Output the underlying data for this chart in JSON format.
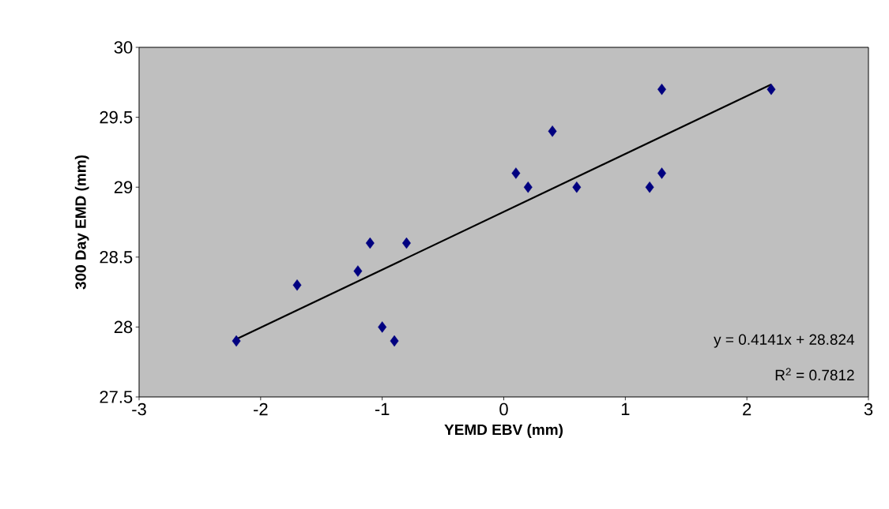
{
  "chart_data": {
    "type": "scatter",
    "xlabel": "YEMD EBV (mm)",
    "ylabel": "300 Day EMD (mm)",
    "xlim": [
      -3,
      3
    ],
    "xticks": [
      -3,
      -2,
      -1,
      0,
      1,
      2,
      3
    ],
    "ylim": [
      27.5,
      30
    ],
    "yticks": [
      27.5,
      28,
      28.5,
      29,
      29.5,
      30
    ],
    "grid": false,
    "series": [
      {
        "color": "#000080",
        "marker": "diamond",
        "x": [
          -2.2,
          -1.7,
          -1.2,
          -1.1,
          -1.0,
          -0.9,
          -0.8,
          0.1,
          0.2,
          0.4,
          0.6,
          1.2,
          1.3,
          1.3,
          2.2
        ],
        "values": [
          27.9,
          28.3,
          28.4,
          28.6,
          28.0,
          27.9,
          28.6,
          29.1,
          29.0,
          29.4,
          29.0,
          29.0,
          29.7,
          29.1,
          29.7
        ]
      },
      {
        "type": "line",
        "color": "#000000",
        "marker": "none",
        "line_style": "solid",
        "x": [
          -2.2,
          2.2
        ],
        "values": [
          27.913,
          29.735
        ]
      }
    ],
    "annotations": [
      "y = 0.4141x + 28.824",
      "R$^{2}$ = 0.7812"
    ]
  }
}
